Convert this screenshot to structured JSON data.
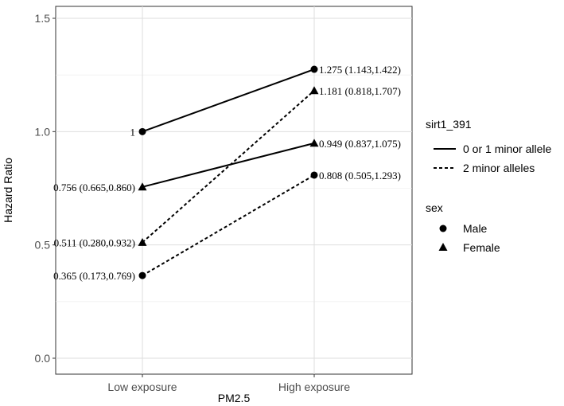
{
  "chart_data": {
    "type": "line",
    "xlabel": "PM2.5",
    "ylabel": "Hazard Ratio",
    "categories": [
      "Low exposure",
      "High exposure"
    ],
    "ylim": [
      0,
      1.5
    ],
    "yticks": [
      "0.0",
      "0.5",
      "1.0",
      "1.5"
    ],
    "series": [
      {
        "name": "Male, 0 or 1 minor allele",
        "sex": "Male",
        "allele": "0 or 1 minor allele",
        "values": [
          1.0,
          1.275
        ],
        "labels": [
          "1",
          "1.275 (1.143,1.422)"
        ]
      },
      {
        "name": "Female, 0 or 1 minor allele",
        "sex": "Female",
        "allele": "0 or 1 minor allele",
        "values": [
          0.756,
          0.949
        ],
        "labels": [
          "0.756 (0.665,0.860)",
          "0.949 (0.837,1.075)"
        ]
      },
      {
        "name": "Female, 2 minor alleles",
        "sex": "Female",
        "allele": "2 minor alleles",
        "values": [
          0.511,
          1.181
        ],
        "labels": [
          "0.511 (0.280,0.932)",
          "1.181 (0.818,1.707)"
        ]
      },
      {
        "name": "Male, 2 minor alleles",
        "sex": "Male",
        "allele": "2 minor alleles",
        "values": [
          0.365,
          0.808
        ],
        "labels": [
          "0.365 (0.173,0.769)",
          "0.808 (0.505,1.293)"
        ]
      }
    ],
    "legend": {
      "position": "right",
      "linetype_title": "sirt1_391",
      "linetype_items": [
        "0 or 1 minor allele",
        "2 minor alleles"
      ],
      "shape_title": "sex",
      "shape_items": [
        "Male",
        "Female"
      ]
    },
    "grid": true
  }
}
